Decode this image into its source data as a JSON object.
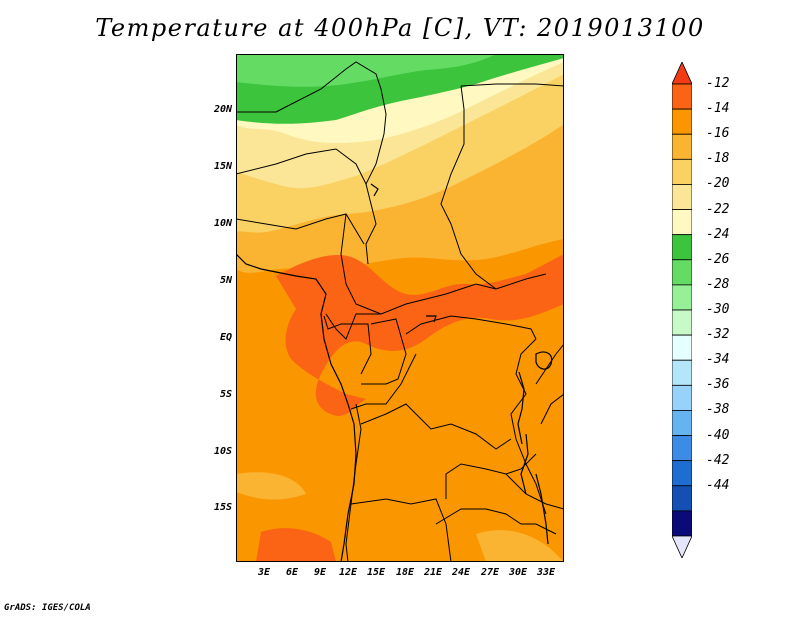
{
  "title": "Temperature at 400hPa [C], VT: 2019013100",
  "credit": "GrADS: IGES/COLA",
  "lat_labels": [
    "20N",
    "15N",
    "10N",
    "5N",
    "EQ",
    "5S",
    "10S",
    "15S"
  ],
  "lon_labels": [
    "3E",
    "6E",
    "9E",
    "12E",
    "15E",
    "18E",
    "21E",
    "24E",
    "27E",
    "30E",
    "33E"
  ],
  "colorbar": {
    "labels": [
      "-12",
      "-14",
      "-16",
      "-18",
      "-20",
      "-22",
      "-24",
      "-26",
      "-28",
      "-30",
      "-32",
      "-34",
      "-36",
      "-38",
      "-40",
      "-42",
      "-44"
    ],
    "colors": [
      "#f03c14",
      "#fa6414",
      "#fa9600",
      "#fab432",
      "#fad264",
      "#fae696",
      "#fff8c0",
      "#3cc43c",
      "#64dc64",
      "#96f096",
      "#c8fac8",
      "#e6ffff",
      "#b4e6fa",
      "#96d2fa",
      "#64b4f0",
      "#3c8ce6",
      "#1e6ed2",
      "#1450b4",
      "#0a0a78",
      "#e6e6fa"
    ]
  },
  "map": {
    "field": "Temperature at 400hPa",
    "units": "C",
    "valid_time": "2019013100"
  }
}
